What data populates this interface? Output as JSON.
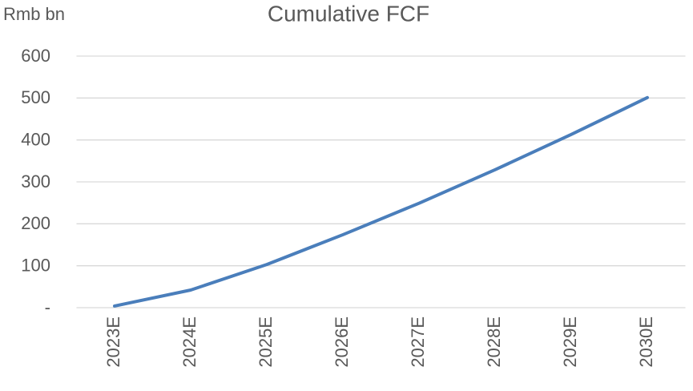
{
  "chart_data": {
    "type": "line",
    "title": "Cumulative FCF",
    "y_label": "Rmb bn",
    "categories": [
      "2023E",
      "2024E",
      "2025E",
      "2026E",
      "2027E",
      "2028E",
      "2029E",
      "2030E"
    ],
    "series": [
      {
        "name": "Cumulative FCF",
        "color": "#4a7ebb",
        "values": [
          4,
          42,
          103,
          174,
          249,
          329,
          413,
          501
        ]
      }
    ],
    "ylim": [
      0,
      600
    ],
    "yticks": [
      {
        "value": 0,
        "label": "-"
      },
      100,
      200,
      300,
      400,
      500,
      600
    ],
    "grid": true
  }
}
